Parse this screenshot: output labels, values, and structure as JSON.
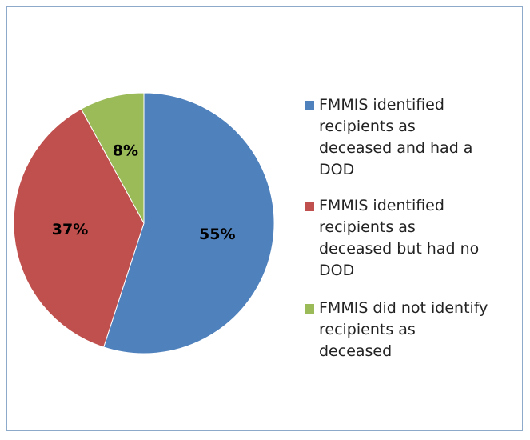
{
  "chart_data": {
    "type": "pie",
    "series": [
      {
        "name": "FMMIS identified recipients as deceased and had a DOD",
        "color": "#4f81bd",
        "values": [
          55
        ]
      },
      {
        "name": "FMMIS identified recipients as deceased but had no DOD",
        "color": "#c0504d",
        "values": [
          37
        ]
      },
      {
        "name": "FMMIS did not identify recipients as deceased",
        "color": "#9bbb59",
        "values": [
          8
        ]
      }
    ],
    "value_labels": [
      "55%",
      "37%",
      "8%"
    ],
    "legend": "right"
  }
}
